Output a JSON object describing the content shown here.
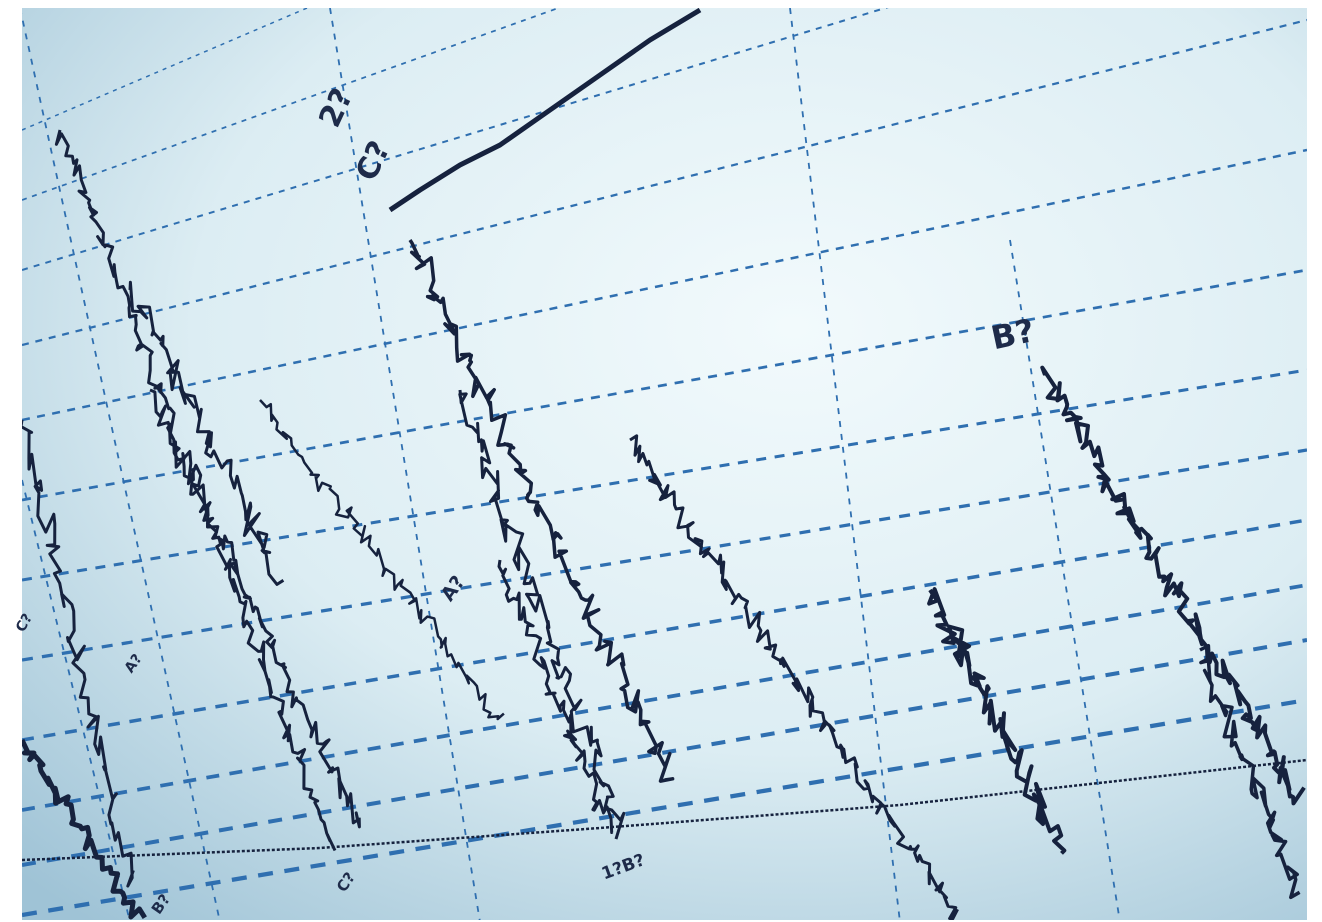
{
  "labels": [
    "2?",
    "C?",
    "B?",
    "A?",
    "A?",
    "C?",
    "1?B?",
    "B?",
    "C?"
  ]
}
